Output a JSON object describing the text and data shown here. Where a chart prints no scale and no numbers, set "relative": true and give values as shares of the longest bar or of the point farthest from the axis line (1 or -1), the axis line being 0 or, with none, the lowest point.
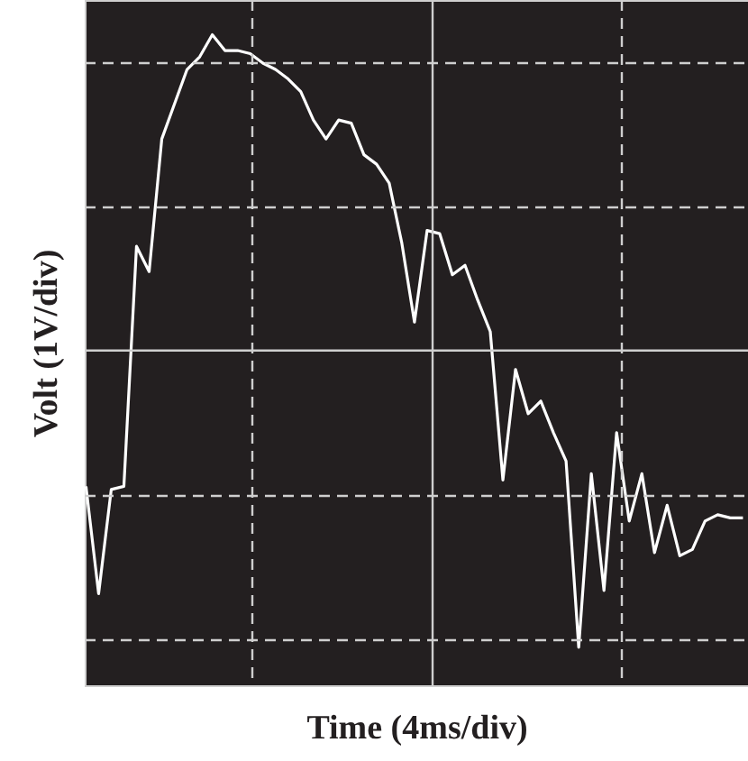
{
  "chart_data": {
    "type": "line",
    "relative": true,
    "xlabel": "Time (4ms/div)",
    "ylabel": "Volt (1V/div)",
    "grid": true,
    "line_style": "solid",
    "marker": "none",
    "categories": [
      null,
      null,
      null,
      null,
      null,
      null,
      null,
      null,
      null,
      null,
      null,
      null,
      null,
      null,
      null,
      null,
      null,
      null,
      null,
      null,
      null,
      null,
      null,
      null,
      null,
      null,
      null,
      null,
      null,
      null,
      null,
      null,
      null,
      null,
      null,
      null,
      null,
      null,
      null,
      null,
      null,
      null,
      null,
      null,
      null,
      null,
      null,
      null,
      null,
      null,
      null,
      null,
      null
    ],
    "series": [
      {
        "color": "#ffffff",
        "values": [
          -0.43,
          -0.77,
          -0.44,
          -0.43,
          0.33,
          0.25,
          0.67,
          0.78,
          0.89,
          0.93,
          1,
          0.95,
          0.95,
          0.94,
          0.91,
          0.89,
          0.86,
          0.82,
          0.73,
          0.67,
          0.73,
          0.72,
          0.62,
          0.59,
          0.53,
          0.34,
          0.09,
          0.38,
          0.37,
          0.24,
          0.27,
          0.16,
          0.06,
          -0.41,
          -0.06,
          -0.2,
          -0.16,
          -0.26,
          -0.35,
          -0.94,
          -0.39,
          -0.76,
          -0.26,
          -0.54,
          -0.39,
          -0.64,
          -0.49,
          -0.65,
          -0.63,
          -0.54,
          -0.52,
          -0.53,
          -0.53
        ]
      }
    ]
  }
}
